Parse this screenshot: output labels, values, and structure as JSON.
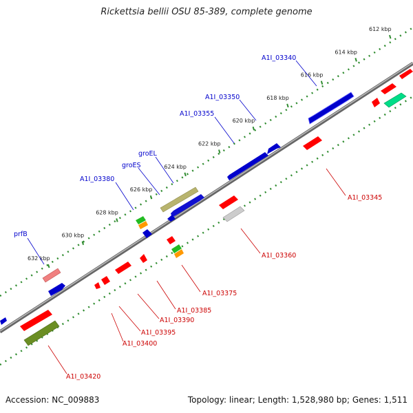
{
  "title": "Rickettsia bellii OSU 85-389, complete genome",
  "footer": {
    "accession": "Accession: NC_009883",
    "summary": "Topology: linear; Length: 1,528,980 bp; Genes: 1,511"
  },
  "colors": {
    "backbone": "#8a8a8a",
    "ruler": "#2e8b2e",
    "forward_label": "#0000cc",
    "reverse_label": "#cc0000"
  },
  "ruler_ticks": [
    {
      "kbp": 612,
      "label": "612 kbp"
    },
    {
      "kbp": 614,
      "label": "614 kbp"
    },
    {
      "kbp": 616,
      "label": "616 kbp"
    },
    {
      "kbp": 618,
      "label": "618 kbp"
    },
    {
      "kbp": 620,
      "label": "620 kbp"
    },
    {
      "kbp": 622,
      "label": "622 kbp"
    },
    {
      "kbp": 624,
      "label": "624 kbp"
    },
    {
      "kbp": 626,
      "label": "626 kbp"
    },
    {
      "kbp": 628,
      "label": "628 kbp"
    },
    {
      "kbp": 630,
      "label": "630 kbp"
    },
    {
      "kbp": 632,
      "label": "632 kbp"
    }
  ],
  "forward_labels": [
    "A1I_03340",
    "A1I_03350",
    "A1I_03355",
    "groEL",
    "groES",
    "A1I_03380",
    "prfB"
  ],
  "reverse_labels": [
    "A1I_03345",
    "A1I_03360",
    "A1I_03375",
    "A1I_03385",
    "A1I_03390",
    "A1I_03395",
    "A1I_03400",
    "A1I_03420"
  ]
}
